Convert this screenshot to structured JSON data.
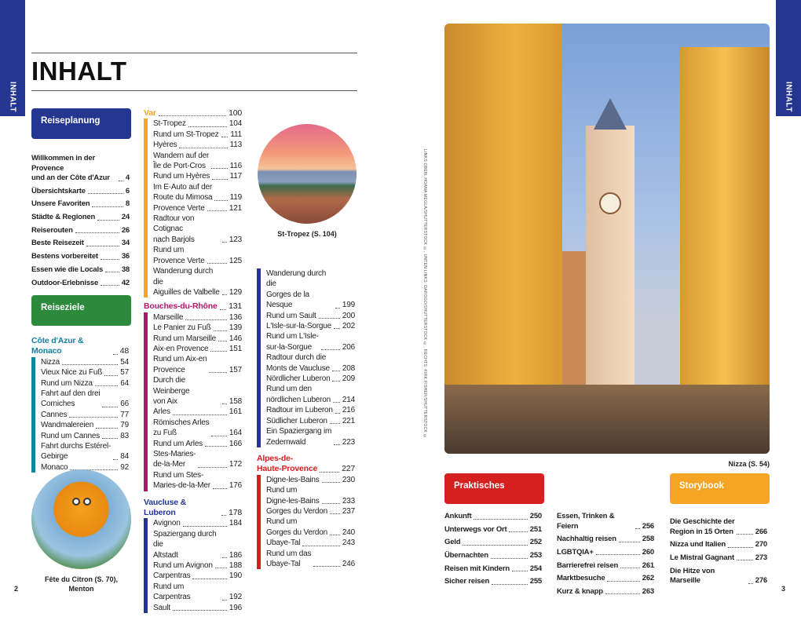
{
  "side_tab": "INHALT",
  "title": "INHALT",
  "colors": {
    "blue": "#24368f",
    "green": "#2b8a3c",
    "teal": "#1581a3",
    "orange": "#f5a424",
    "magenta": "#b0186e",
    "red": "#d61f1f"
  },
  "reiseplanung": {
    "label": "Reiseplanung",
    "items": [
      {
        "t": "Willkommen in der Provence\nund an der Côte d'Azur",
        "p": "4"
      },
      {
        "t": "Übersichtskarte",
        "p": "6"
      },
      {
        "t": "Unsere Favoriten",
        "p": "8"
      },
      {
        "t": "Städte & Regionen",
        "p": "24"
      },
      {
        "t": "Reiserouten",
        "p": "26"
      },
      {
        "t": "Beste Reisezeit",
        "p": "34"
      },
      {
        "t": "Bestens vorbereitet",
        "p": "36"
      },
      {
        "t": "Essen wie die Locals",
        "p": "38"
      },
      {
        "t": "Outdoor-Erlebnisse",
        "p": "42"
      }
    ]
  },
  "reiseziele": {
    "label": "Reiseziele"
  },
  "sections": [
    {
      "name": "Côte d'Azur & Monaco",
      "p": "48",
      "color": "#1581a3",
      "items": [
        {
          "t": "Nizza",
          "p": "54"
        },
        {
          "t": "Vieux Nice zu Fuß",
          "p": "57"
        },
        {
          "t": "Rund um Nizza",
          "p": "64"
        },
        {
          "t": "Fahrt auf den drei\nCorniches",
          "p": "66"
        },
        {
          "t": "Cannes",
          "p": "77"
        },
        {
          "t": "Wandmalereien",
          "p": "79"
        },
        {
          "t": "Rund um Cannes",
          "p": "83"
        },
        {
          "t": "Fahrt durchs  Estérel-\nGebirge",
          "p": "84"
        },
        {
          "t": "Monaco",
          "p": "92"
        }
      ]
    },
    {
      "name": "Var",
      "p": "100",
      "color": "#f5a424",
      "items": [
        {
          "t": "St-Tropez",
          "p": "104"
        },
        {
          "t": "Rund um St-Tropez",
          "p": "111"
        },
        {
          "t": "Hyères",
          "p": "113"
        },
        {
          "t": "Wandern auf der\nÎle de Port-Cros",
          "p": "116"
        },
        {
          "t": "Rund um Hyères",
          "p": "117"
        },
        {
          "t": "Im E-Auto auf der\nRoute du Mimosa",
          "p": "119"
        },
        {
          "t": "Provence Verte",
          "p": "121"
        },
        {
          "t": "Radtour von Cotignac\nnach Barjols",
          "p": "123"
        },
        {
          "t": "Rund um\nProvence Verte",
          "p": "125"
        },
        {
          "t": "Wanderung durch die\nAiguilles de Valbelle",
          "p": "129"
        }
      ]
    },
    {
      "name": "Bouches-du-Rhône",
      "p": "131",
      "color": "#b0186e",
      "items": [
        {
          "t": "Marseille",
          "p": "136"
        },
        {
          "t": "Le Panier zu Fuß",
          "p": "139"
        },
        {
          "t": "Rund um Marseille",
          "p": "146"
        },
        {
          "t": "Aix-en Provence",
          "p": "151"
        },
        {
          "t": "Rund um Aix-en\nProvence",
          "p": "157"
        },
        {
          "t": "Durch die Weinberge\nvon Aix",
          "p": "158"
        },
        {
          "t": "Arles",
          "p": "161"
        },
        {
          "t": "Römisches Arles\nzu Fuß",
          "p": "164"
        },
        {
          "t": "Rund um Arles",
          "p": "166"
        },
        {
          "t": "Stes-Maries-\nde-la-Mer",
          "p": "172"
        },
        {
          "t": "Rund um Stes-\nMaries-de-la-Mer",
          "p": "176"
        }
      ]
    },
    {
      "name": "Vaucluse & Luberon",
      "p": "178",
      "color": "#24368f",
      "items": [
        {
          "t": "Avignon",
          "p": "184"
        },
        {
          "t": "Spaziergang durch die\nAltstadt",
          "p": "186"
        },
        {
          "t": "Rund um Avignon",
          "p": "188"
        },
        {
          "t": "Carpentras",
          "p": "190"
        },
        {
          "t": "Rund um Carpentras",
          "p": "192"
        },
        {
          "t": "Sault",
          "p": "196"
        }
      ]
    },
    {
      "name": "",
      "p": "",
      "color": "#24368f",
      "items": [
        {
          "t": "Wanderung durch die\nGorges de la Nesque",
          "p": "199"
        },
        {
          "t": "Rund um Sault",
          "p": "200"
        },
        {
          "t": "L'Isle-sur-la-Sorgue",
          "p": "202"
        },
        {
          "t": "Rund um L'Isle-\nsur-la-Sorgue",
          "p": "206"
        },
        {
          "t": "Radtour durch die\nMonts de Vaucluse",
          "p": "208"
        },
        {
          "t": "Nördlicher Luberon",
          "p": "209"
        },
        {
          "t": "Rund um den\nnördlichen Luberon",
          "p": "214"
        },
        {
          "t": "Radtour im Luberon",
          "p": "216"
        },
        {
          "t": "Südlicher Luberon",
          "p": "221"
        },
        {
          "t": "Ein Spaziergang im\nZedernwald",
          "p": "223"
        }
      ]
    },
    {
      "name": "Alpes-de-\nHaute-Provence",
      "p": "227",
      "color": "#d61f1f",
      "items": [
        {
          "t": "Digne-les-Bains",
          "p": "230"
        },
        {
          "t": "Rund um\nDigne-les-Bains",
          "p": "233"
        },
        {
          "t": "Gorges du Verdon",
          "p": "237"
        },
        {
          "t": "Rund um\nGorges du Verdon",
          "p": "240"
        },
        {
          "t": "Ubaye-Tal",
          "p": "243"
        },
        {
          "t": "Rund um das\nUbaye-Tal",
          "p": "246"
        }
      ]
    }
  ],
  "praktisches": {
    "label": "Praktisches",
    "col1": [
      {
        "t": "Ankunft",
        "p": "250"
      },
      {
        "t": "Unterwegs vor Ort",
        "p": "251"
      },
      {
        "t": "Geld",
        "p": "252"
      },
      {
        "t": "Übernachten",
        "p": "253"
      },
      {
        "t": "Reisen mit Kindern",
        "p": "254"
      },
      {
        "t": "Sicher reisen",
        "p": "255"
      }
    ],
    "col2": [
      {
        "t": "Essen, Trinken & Feiern",
        "p": "256"
      },
      {
        "t": "Nachhaltig reisen",
        "p": "258"
      },
      {
        "t": "LGBTQIA+",
        "p": "260"
      },
      {
        "t": "Barrierefrei  reisen",
        "p": "261"
      },
      {
        "t": "Marktbesuche",
        "p": "262"
      },
      {
        "t": "Kurz & knapp",
        "p": "263"
      }
    ]
  },
  "storybook": {
    "label": "Storybook",
    "items": [
      {
        "t": "Die Geschichte der\nRegion in 15 Orten",
        "p": "266"
      },
      {
        "t": "Nizza und Italien",
        "p": "270"
      },
      {
        "t": "Le Mistral Gagnant",
        "p": "273"
      },
      {
        "t": "Die Hitze von Marseille",
        "p": "276"
      }
    ]
  },
  "captions": {
    "st_tropez": "St-Tropez (S. 104)",
    "citron": "Fête du Citron (S. 70),\nMenton",
    "nizza": "Nizza (S. 54)"
  },
  "credit": "LINKS OBEN: HOANA MEGLA/SHUTTERSTOCK ©, UNTEN LINKS: DAROGO/SHUTTERSTOCK ©, RECHTS: KIRK FISHER/SHUTTERSTOCK ©",
  "page_left": "2",
  "page_right": "3"
}
